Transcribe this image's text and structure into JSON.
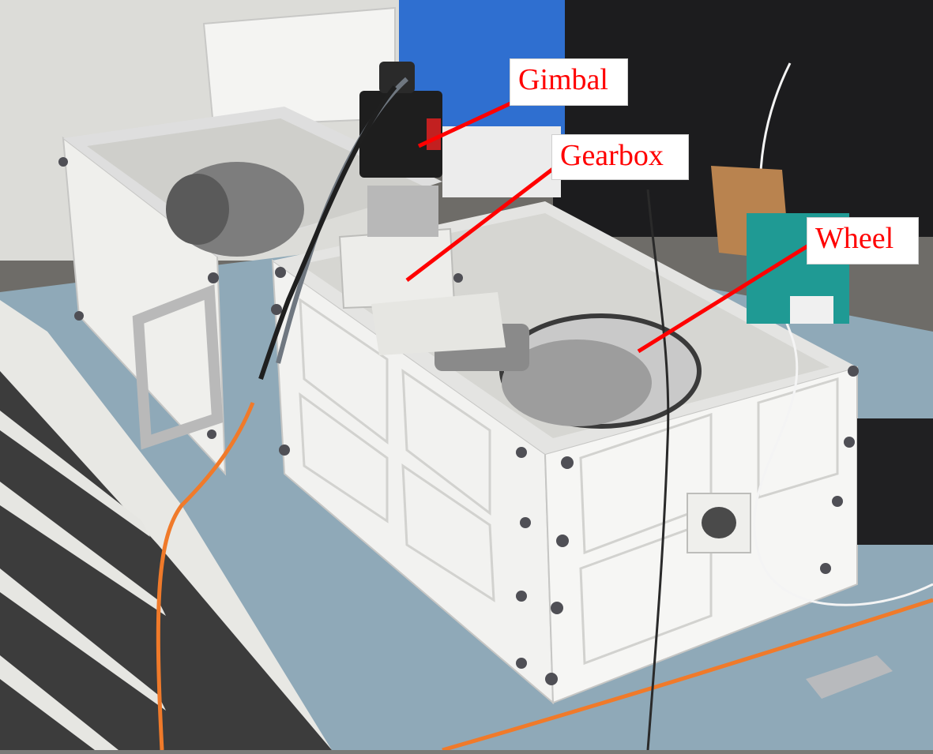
{
  "labels": {
    "gimbal": "Gimbal",
    "gearbox": "Gearbox",
    "wheel": "Wheel"
  },
  "colors": {
    "label_text": "#ff0000",
    "pointer_line": "#ff0000",
    "enclosure": "#f2f2f0",
    "bench_top": "#8fa9b8",
    "cable_orange": "#f07a2a"
  }
}
